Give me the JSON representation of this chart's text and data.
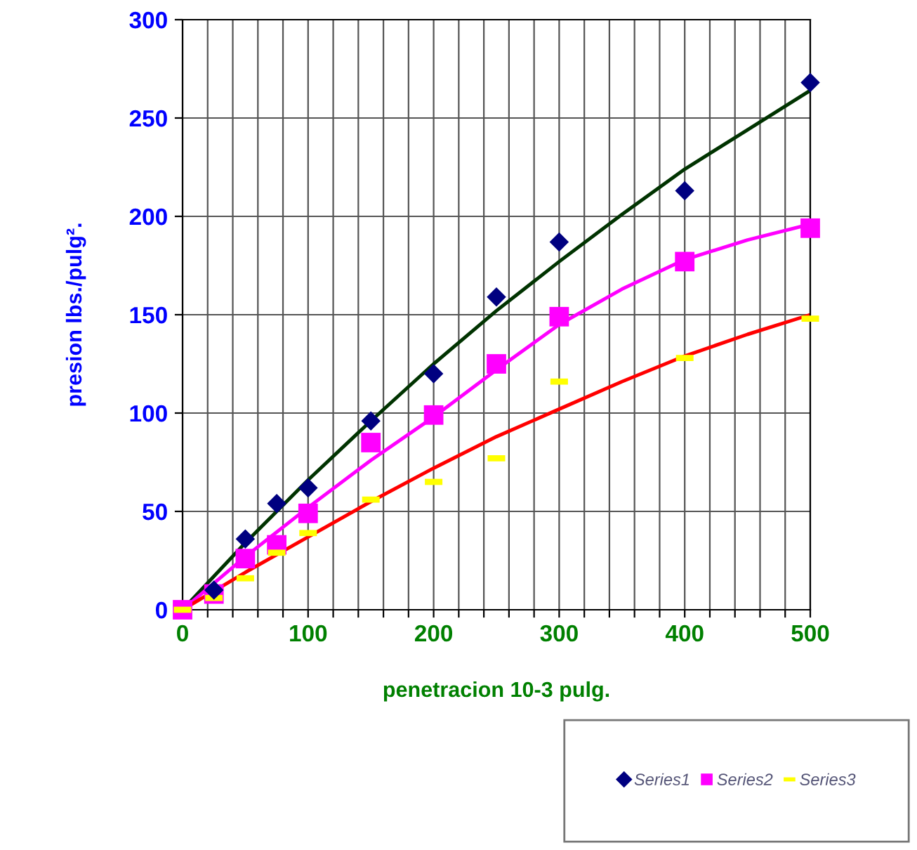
{
  "chart_data": {
    "type": "scatter",
    "xlabel": "penetracion 10-3 pulg.",
    "ylabel": "presion lbs./pulg².",
    "x": [
      0,
      25,
      50,
      75,
      100,
      150,
      200,
      250,
      300,
      400,
      500
    ],
    "series": [
      {
        "name": "Series1",
        "color": "#000080",
        "marker": "diamond",
        "values": [
          null,
          10,
          36,
          54,
          62,
          96,
          120,
          159,
          187,
          213,
          268
        ]
      },
      {
        "name": "Series2",
        "color": "#ff00ff",
        "marker": "square",
        "values": [
          0,
          8,
          26,
          33,
          49,
          85,
          99,
          125,
          149,
          177,
          194
        ]
      },
      {
        "name": "Series3",
        "color": "#ffff00",
        "marker": "square",
        "values": [
          0,
          6,
          16,
          29,
          39,
          56,
          65,
          77,
          116,
          128,
          148
        ]
      },
      {
        "type": "line",
        "color": "#003300",
        "x": [
          0,
          50,
          100,
          150,
          200,
          250,
          300,
          350,
          400,
          450,
          500
        ],
        "values": [
          0,
          34,
          66,
          96,
          125,
          152,
          177,
          201,
          224,
          244,
          264
        ]
      },
      {
        "type": "line",
        "color": "#ff00ff",
        "x": [
          0,
          50,
          100,
          150,
          200,
          250,
          300,
          350,
          400,
          450,
          500
        ],
        "values": [
          0,
          27,
          52,
          76,
          98,
          122,
          145,
          163,
          178,
          188,
          196
        ]
      },
      {
        "type": "line",
        "color": "#ff0000",
        "x": [
          0,
          50,
          100,
          150,
          200,
          250,
          300,
          350,
          400,
          450,
          500
        ],
        "values": [
          0,
          19,
          37,
          55,
          72,
          88,
          102,
          116,
          129,
          140,
          150
        ]
      }
    ],
    "xlim": [
      0,
      500
    ],
    "ylim": [
      0,
      300
    ],
    "xticks": [
      0,
      {
        "value": 20,
        "label": null
      },
      {
        "value": 40,
        "label": null
      },
      {
        "value": 60,
        "label": null
      },
      {
        "value": 80,
        "label": null
      },
      100,
      {
        "value": 120,
        "label": null
      },
      {
        "value": 140,
        "label": null
      },
      {
        "value": 160,
        "label": null
      },
      {
        "value": 180,
        "label": null
      },
      200,
      {
        "value": 220,
        "label": null
      },
      {
        "value": 240,
        "label": null
      },
      {
        "value": 260,
        "label": null
      },
      {
        "value": 280,
        "label": null
      },
      300,
      {
        "value": 320,
        "label": null
      },
      {
        "value": 340,
        "label": null
      },
      {
        "value": 360,
        "label": null
      },
      {
        "value": 380,
        "label": null
      },
      400,
      {
        "value": 420,
        "label": null
      },
      {
        "value": 440,
        "label": null
      },
      {
        "value": 460,
        "label": null
      },
      {
        "value": 480,
        "label": null
      },
      500
    ],
    "yticks": [
      0,
      50,
      100,
      150,
      200,
      250,
      300
    ],
    "grid": true,
    "legend": "bottom right"
  }
}
